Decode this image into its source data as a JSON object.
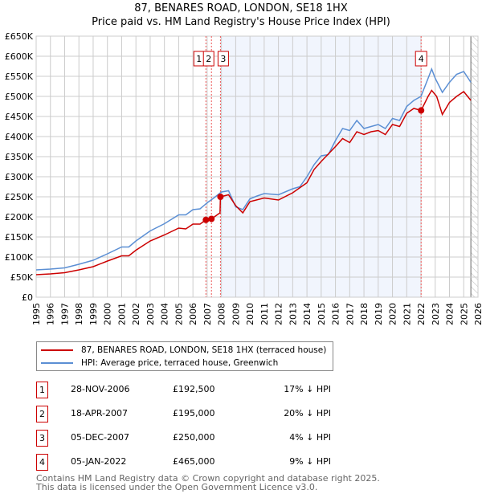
{
  "title": {
    "line1": "87, BENARES ROAD, LONDON, SE18 1HX",
    "line2": "Price paid vs. HM Land Registry's House Price Index (HPI)"
  },
  "chart_data": {
    "type": "line",
    "title": "87, BENARES ROAD, LONDON, SE18 1HX — Price paid vs. HM Land Registry's House Price Index (HPI)",
    "xlim": [
      1995,
      2026
    ],
    "ylim": [
      0,
      650000
    ],
    "x_ticks": [
      "1995",
      "1996",
      "1997",
      "1998",
      "1999",
      "2000",
      "2001",
      "2002",
      "2003",
      "2004",
      "2005",
      "2006",
      "2007",
      "2008",
      "2009",
      "2010",
      "2011",
      "2012",
      "2013",
      "2014",
      "2015",
      "2016",
      "2017",
      "2018",
      "2019",
      "2020",
      "2021",
      "2022",
      "2023",
      "2024",
      "2025",
      "2026"
    ],
    "y_ticks": [
      "£0",
      "£50K",
      "£100K",
      "£150K",
      "£200K",
      "£250K",
      "£300K",
      "£350K",
      "£400K",
      "£450K",
      "£500K",
      "£550K",
      "£600K",
      "£650K"
    ],
    "grid": true,
    "series": [
      {
        "name": "87, BENARES ROAD, LONDON, SE18 1HX (terraced house)",
        "color": "#cc0000",
        "points": [
          [
            1995,
            56000
          ],
          [
            1996,
            58000
          ],
          [
            1997,
            61000
          ],
          [
            1998,
            68000
          ],
          [
            1999,
            76000
          ],
          [
            2000,
            90000
          ],
          [
            2001,
            103000
          ],
          [
            2001.5,
            103000
          ],
          [
            2002,
            117000
          ],
          [
            2003,
            140000
          ],
          [
            2004,
            155000
          ],
          [
            2005,
            172000
          ],
          [
            2005.5,
            170000
          ],
          [
            2006,
            182000
          ],
          [
            2006.5,
            182000
          ],
          [
            2006.91,
            192500
          ],
          [
            2007.3,
            195000
          ],
          [
            2007.9,
            210000
          ],
          [
            2007.93,
            250000
          ],
          [
            2008.5,
            255000
          ],
          [
            2009,
            228000
          ],
          [
            2009.5,
            210000
          ],
          [
            2010,
            238000
          ],
          [
            2011,
            247000
          ],
          [
            2012,
            242000
          ],
          [
            2013,
            260000
          ],
          [
            2014,
            285000
          ],
          [
            2014.5,
            318000
          ],
          [
            2015,
            338000
          ],
          [
            2016,
            375000
          ],
          [
            2016.5,
            395000
          ],
          [
            2017,
            385000
          ],
          [
            2017.5,
            412000
          ],
          [
            2018,
            405000
          ],
          [
            2018.5,
            412000
          ],
          [
            2019,
            415000
          ],
          [
            2019.5,
            405000
          ],
          [
            2020,
            430000
          ],
          [
            2020.5,
            425000
          ],
          [
            2021,
            458000
          ],
          [
            2021.5,
            470000
          ],
          [
            2022.01,
            465000
          ],
          [
            2022.5,
            500000
          ],
          [
            2022.75,
            515000
          ],
          [
            2023.1,
            500000
          ],
          [
            2023.5,
            455000
          ],
          [
            2024,
            485000
          ],
          [
            2024.5,
            500000
          ],
          [
            2025,
            512000
          ],
          [
            2025.5,
            490000
          ]
        ]
      },
      {
        "name": "HPI: Average price, terraced house, Greenwich",
        "color": "#5b8fd4",
        "points": [
          [
            1995,
            68000
          ],
          [
            1996,
            70000
          ],
          [
            1997,
            73000
          ],
          [
            1998,
            82000
          ],
          [
            1999,
            92000
          ],
          [
            2000,
            108000
          ],
          [
            2001,
            125000
          ],
          [
            2001.5,
            125000
          ],
          [
            2002,
            140000
          ],
          [
            2003,
            165000
          ],
          [
            2004,
            183000
          ],
          [
            2005,
            205000
          ],
          [
            2005.5,
            205000
          ],
          [
            2006,
            218000
          ],
          [
            2006.5,
            220000
          ],
          [
            2007,
            235000
          ],
          [
            2007.5,
            248000
          ],
          [
            2008,
            262000
          ],
          [
            2008.5,
            265000
          ],
          [
            2009,
            225000
          ],
          [
            2009.5,
            218000
          ],
          [
            2010,
            245000
          ],
          [
            2010.5,
            252000
          ],
          [
            2011,
            258000
          ],
          [
            2012,
            255000
          ],
          [
            2013,
            270000
          ],
          [
            2013.5,
            275000
          ],
          [
            2014,
            300000
          ],
          [
            2014.5,
            330000
          ],
          [
            2015,
            352000
          ],
          [
            2015.5,
            355000
          ],
          [
            2016,
            390000
          ],
          [
            2016.5,
            420000
          ],
          [
            2017,
            415000
          ],
          [
            2017.5,
            440000
          ],
          [
            2018,
            420000
          ],
          [
            2018.5,
            425000
          ],
          [
            2019,
            430000
          ],
          [
            2019.5,
            420000
          ],
          [
            2020,
            445000
          ],
          [
            2020.5,
            440000
          ],
          [
            2021,
            475000
          ],
          [
            2021.5,
            490000
          ],
          [
            2022,
            500000
          ],
          [
            2022.5,
            545000
          ],
          [
            2022.75,
            568000
          ],
          [
            2023,
            545000
          ],
          [
            2023.5,
            510000
          ],
          [
            2024,
            535000
          ],
          [
            2024.5,
            555000
          ],
          [
            2025,
            562000
          ],
          [
            2025.5,
            535000
          ]
        ]
      }
    ],
    "sales": [
      {
        "label": "1",
        "x": 2006.91,
        "price": 192500,
        "date": "28-NOV-2006",
        "price_text": "£192,500",
        "hpi": "17% ↓ HPI"
      },
      {
        "label": "2",
        "x": 2007.3,
        "price": 195000,
        "date": "18-APR-2007",
        "price_text": "£195,000",
        "hpi": "20% ↓ HPI"
      },
      {
        "label": "3",
        "x": 2007.93,
        "price": 250000,
        "date": "05-DEC-2007",
        "price_text": "£250,000",
        "hpi": "4% ↓ HPI"
      },
      {
        "label": "4",
        "x": 2022.01,
        "price": 465000,
        "date": "05-JAN-2022",
        "price_text": "£465,000",
        "hpi": "9% ↓ HPI"
      }
    ],
    "shaded_range": [
      2007.93,
      2022.01
    ],
    "forecast_from": 2025.5,
    "legend_position": "below"
  },
  "footer": {
    "line1": "Contains HM Land Registry data © Crown copyright and database right 2025.",
    "line2": "This data is licensed under the Open Government Licence v3.0."
  }
}
